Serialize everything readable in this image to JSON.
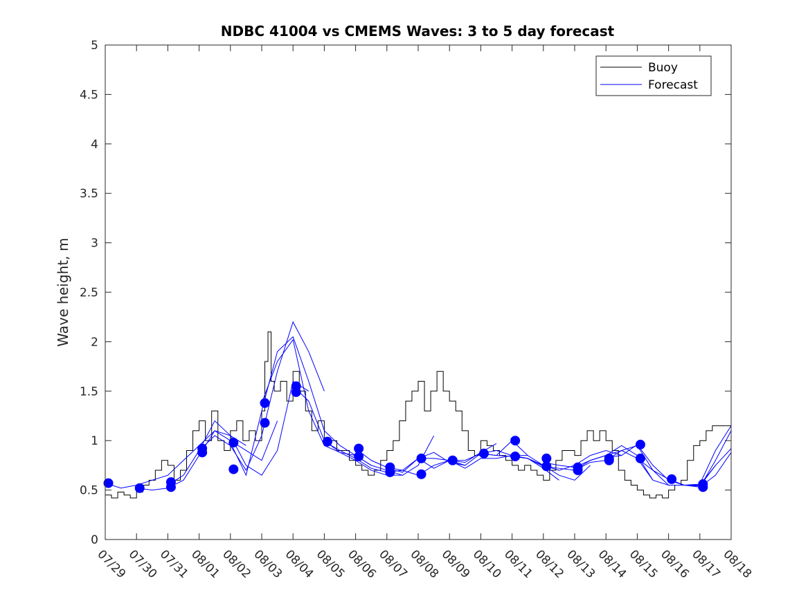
{
  "chart_data": {
    "type": "line",
    "title": "NDBC 41004 vs CMEMS Waves: 3 to 5 day forecast",
    "xlabel": "",
    "ylabel": "Wave height, m",
    "xlim": [
      0,
      20
    ],
    "ylim": [
      0,
      5
    ],
    "y_ticks": [
      "0",
      "0.5",
      "1",
      "1.5",
      "2",
      "2.5",
      "3",
      "3.5",
      "4",
      "4.5",
      "5"
    ],
    "x_ticks": [
      "07/29",
      "07/30",
      "07/31",
      "08/01",
      "08/02",
      "08/03",
      "08/04",
      "08/05",
      "08/06",
      "08/07",
      "08/08",
      "08/09",
      "08/10",
      "08/11",
      "08/12",
      "08/13",
      "08/14",
      "08/15",
      "08/16",
      "08/17",
      "08/18"
    ],
    "legend": {
      "location": "top-right",
      "entries": [
        "Buoy",
        "Forecast"
      ]
    },
    "colors": {
      "buoy": "#000000",
      "forecast": "#0000ff",
      "markers": "#0000ff",
      "axis": "#262626"
    },
    "series": [
      {
        "name": "Buoy",
        "style": "step",
        "x": [
          0,
          0.2,
          0.4,
          0.6,
          0.8,
          1.0,
          1.2,
          1.4,
          1.6,
          1.8,
          2.0,
          2.2,
          2.4,
          2.6,
          2.8,
          3.0,
          3.2,
          3.4,
          3.6,
          3.8,
          4.0,
          4.2,
          4.4,
          4.6,
          4.8,
          5.0,
          5.1,
          5.2,
          5.3,
          5.4,
          5.6,
          5.8,
          6.0,
          6.2,
          6.4,
          6.6,
          6.8,
          7.0,
          7.2,
          7.4,
          7.6,
          7.8,
          8.0,
          8.2,
          8.4,
          8.6,
          8.8,
          9.0,
          9.2,
          9.4,
          9.6,
          9.8,
          10.0,
          10.2,
          10.4,
          10.6,
          10.8,
          11.0,
          11.2,
          11.4,
          11.6,
          11.8,
          12.0,
          12.2,
          12.4,
          12.6,
          12.8,
          13.0,
          13.2,
          13.4,
          13.6,
          13.8,
          14.0,
          14.2,
          14.4,
          14.6,
          14.8,
          15.0,
          15.2,
          15.4,
          15.6,
          15.8,
          16.0,
          16.2,
          16.4,
          16.6,
          16.8,
          17.0,
          17.2,
          17.4,
          17.6,
          17.8,
          18.0,
          18.2,
          18.4,
          18.6,
          18.8,
          19.0,
          19.2,
          19.4,
          19.6,
          19.8,
          20.0
        ],
        "y": [
          0.45,
          0.42,
          0.48,
          0.45,
          0.42,
          0.48,
          0.55,
          0.6,
          0.7,
          0.8,
          0.75,
          0.6,
          0.7,
          0.9,
          1.1,
          1.2,
          1.0,
          1.3,
          1.0,
          0.9,
          1.1,
          1.2,
          1.0,
          1.1,
          1.0,
          1.3,
          1.8,
          2.1,
          1.6,
          1.5,
          1.6,
          1.4,
          1.7,
          1.5,
          1.3,
          1.1,
          1.2,
          1.0,
          1.0,
          0.9,
          0.9,
          0.8,
          0.75,
          0.7,
          0.65,
          0.7,
          0.8,
          0.9,
          1.0,
          1.2,
          1.4,
          1.5,
          1.6,
          1.3,
          1.5,
          1.7,
          1.5,
          1.4,
          1.3,
          1.1,
          0.9,
          0.85,
          1.0,
          0.95,
          0.9,
          0.85,
          0.8,
          0.75,
          0.7,
          0.75,
          0.7,
          0.65,
          0.6,
          0.7,
          0.8,
          0.9,
          0.9,
          0.85,
          1.0,
          1.1,
          1.0,
          1.1,
          1.0,
          0.9,
          0.7,
          0.6,
          0.55,
          0.5,
          0.45,
          0.42,
          0.45,
          0.42,
          0.5,
          0.55,
          0.6,
          0.8,
          0.95,
          1.0,
          1.1,
          1.15,
          1.15,
          1.15,
          1.1
        ]
      },
      {
        "name": "Forecast",
        "style": "line",
        "runs": [
          {
            "x": [
              0.0,
              0.5,
              1.0,
              1.5,
              2.0,
              2.5,
              3.0,
              3.5,
              4.0,
              4.5
            ],
            "y": [
              0.57,
              0.52,
              0.55,
              0.6,
              0.65,
              0.8,
              0.95,
              1.1,
              1.05,
              0.95
            ]
          },
          {
            "x": [
              1.0,
              1.5,
              2.0,
              2.5,
              3.0,
              3.5,
              4.0,
              4.5,
              5.0,
              5.5
            ],
            "y": [
              0.52,
              0.5,
              0.52,
              0.6,
              0.85,
              1.1,
              1.0,
              0.9,
              0.8,
              1.2
            ]
          },
          {
            "x": [
              2.0,
              2.5,
              3.0,
              3.5,
              4.0,
              4.5,
              5.0,
              5.5,
              6.0,
              6.5
            ],
            "y": [
              0.55,
              0.65,
              0.9,
              1.2,
              1.05,
              0.75,
              0.65,
              0.9,
              1.6,
              1.5
            ]
          },
          {
            "x": [
              3.0,
              3.5,
              4.0,
              4.5,
              5.0,
              5.5,
              6.0,
              6.5,
              7.0
            ],
            "y": [
              0.9,
              1.05,
              0.95,
              0.7,
              1.05,
              1.7,
              2.2,
              1.9,
              1.5
            ]
          },
          {
            "x": [
              4.0,
              4.5,
              5.0,
              5.5,
              6.0,
              6.5,
              7.0,
              7.5,
              8.0,
              8.5
            ],
            "y": [
              0.98,
              0.65,
              1.3,
              1.9,
              2.05,
              1.6,
              1.1,
              0.95,
              0.85,
              0.75
            ]
          },
          {
            "x": [
              5.0,
              5.5,
              6.0,
              6.5,
              7.0,
              7.5,
              8.0,
              8.5,
              9.0,
              9.5
            ],
            "y": [
              1.38,
              1.8,
              2.02,
              1.3,
              0.95,
              0.88,
              0.8,
              0.7,
              0.65,
              0.65
            ]
          },
          {
            "x": [
              6.0,
              6.5,
              7.0,
              7.5,
              8.0,
              8.5,
              9.0,
              9.5,
              10.0,
              10.5
            ],
            "y": [
              1.55,
              1.4,
              1.0,
              0.88,
              0.85,
              0.75,
              0.7,
              0.65,
              0.75,
              1.05
            ]
          },
          {
            "x": [
              7.0,
              7.5,
              8.0,
              8.5,
              9.0,
              9.5,
              10.0,
              10.5,
              11.0,
              11.5
            ],
            "y": [
              0.99,
              0.9,
              0.82,
              0.72,
              0.68,
              0.7,
              0.82,
              0.88,
              0.78,
              0.75
            ]
          },
          {
            "x": [
              8.0,
              8.5,
              9.0,
              9.5,
              10.0,
              10.5,
              11.0,
              11.5,
              12.0,
              12.5
            ],
            "y": [
              0.92,
              0.8,
              0.73,
              0.7,
              0.65,
              0.75,
              0.8,
              0.78,
              0.88,
              0.97
            ]
          },
          {
            "x": [
              9.0,
              9.5,
              10.0,
              10.5,
              11.0,
              11.5,
              12.0,
              12.5,
              13.0,
              13.5
            ],
            "y": [
              0.72,
              0.68,
              0.82,
              0.72,
              0.8,
              0.72,
              0.82,
              0.82,
              0.85,
              0.85
            ]
          },
          {
            "x": [
              10.0,
              10.5,
              11.0,
              11.5,
              12.0,
              12.5,
              13.0,
              13.5,
              14.0,
              14.5
            ],
            "y": [
              0.82,
              0.82,
              0.8,
              0.8,
              0.87,
              0.9,
              0.85,
              0.82,
              0.72,
              0.6
            ]
          },
          {
            "x": [
              11.0,
              11.5,
              12.0,
              12.5,
              13.0,
              13.5,
              14.0,
              14.5,
              15.0,
              15.5
            ],
            "y": [
              0.8,
              0.75,
              0.87,
              0.85,
              0.84,
              0.82,
              0.75,
              0.65,
              0.6,
              0.75
            ]
          },
          {
            "x": [
              12.0,
              12.5,
              13.0,
              13.5,
              14.0,
              14.5,
              15.0,
              15.5,
              16.0,
              16.5
            ],
            "y": [
              0.87,
              0.85,
              1.0,
              0.85,
              0.75,
              0.7,
              0.75,
              0.85,
              0.9,
              0.85
            ]
          },
          {
            "x": [
              13.0,
              13.5,
              14.0,
              14.5,
              15.0,
              15.5,
              16.0,
              16.5,
              17.0,
              17.5
            ],
            "y": [
              0.84,
              0.82,
              0.74,
              0.72,
              0.7,
              0.8,
              0.85,
              0.95,
              0.85,
              0.6
            ]
          },
          {
            "x": [
              14.0,
              14.5,
              15.0,
              15.5,
              16.0,
              16.5,
              17.0,
              17.5,
              18.0,
              18.5
            ],
            "y": [
              0.78,
              0.75,
              0.73,
              0.8,
              0.85,
              0.9,
              0.95,
              0.7,
              0.55,
              0.55
            ]
          },
          {
            "x": [
              15.0,
              15.5,
              16.0,
              16.5,
              17.0,
              17.5,
              18.0,
              18.5,
              19.0,
              19.5
            ],
            "y": [
              0.7,
              0.78,
              0.8,
              0.9,
              0.82,
              0.6,
              0.55,
              0.55,
              0.55,
              0.75
            ]
          },
          {
            "x": [
              16.0,
              16.5,
              17.0,
              17.5,
              18.0,
              18.5,
              19.0,
              19.5,
              20.0
            ],
            "y": [
              0.83,
              0.85,
              0.96,
              0.75,
              0.6,
              0.55,
              0.53,
              0.8,
              1.1
            ]
          },
          {
            "x": [
              17.0,
              17.5,
              18.0,
              18.5,
              19.0,
              19.5,
              20.0
            ],
            "y": [
              0.82,
              0.7,
              0.61,
              0.55,
              0.56,
              0.9,
              1.15
            ]
          },
          {
            "x": [
              18.0,
              18.5,
              19.0,
              19.5,
              20.0
            ],
            "y": [
              0.6,
              0.55,
              0.54,
              0.75,
              0.92
            ]
          },
          {
            "x": [
              19.0,
              19.5,
              20.0
            ],
            "y": [
              0.53,
              0.65,
              0.88
            ]
          }
        ]
      },
      {
        "name": "Forecast analysis points",
        "style": "markers",
        "x": [
          0.1,
          1.1,
          2.1,
          2.1,
          3.1,
          3.1,
          4.1,
          4.1,
          5.1,
          5.1,
          6.1,
          6.1,
          7.1,
          8.1,
          8.1,
          9.1,
          9.1,
          10.1,
          10.1,
          11.1,
          12.1,
          13.1,
          13.1,
          14.1,
          14.1,
          15.1,
          15.1,
          16.1,
          16.1,
          17.1,
          17.1,
          18.1,
          19.1,
          19.1
        ],
        "y": [
          0.57,
          0.52,
          0.58,
          0.53,
          0.92,
          0.88,
          0.98,
          0.71,
          1.38,
          1.18,
          1.55,
          1.49,
          0.99,
          0.92,
          0.84,
          0.73,
          0.68,
          0.82,
          0.66,
          0.8,
          0.87,
          1.0,
          0.84,
          0.82,
          0.74,
          0.73,
          0.7,
          0.82,
          0.8,
          0.96,
          0.82,
          0.61,
          0.56,
          0.53
        ]
      }
    ]
  }
}
